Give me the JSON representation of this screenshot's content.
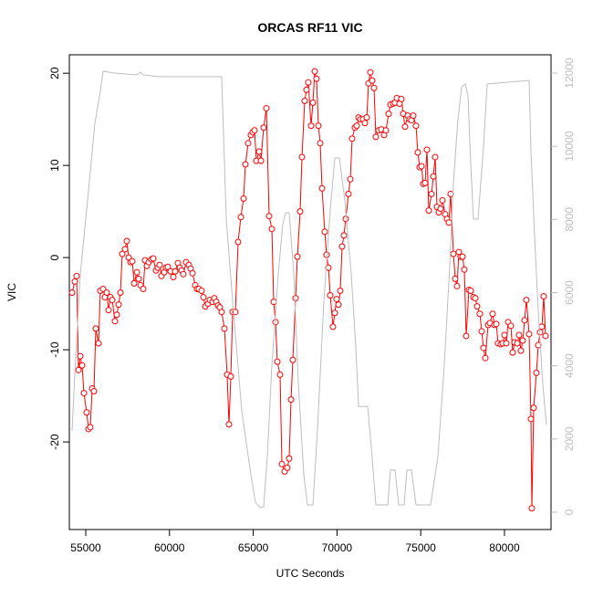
{
  "chart_data": {
    "type": "line",
    "title": "ORCAS RF11 VIC",
    "x_label": "UTC Seconds",
    "y_label": "VIC",
    "xlim": [
      54020,
      82780
    ],
    "ylim": [
      -29.5,
      22
    ],
    "y2lim": [
      -474,
      12499
    ],
    "xticks": [
      55000,
      60000,
      65000,
      70000,
      75000,
      80000
    ],
    "yticks": [
      -20,
      -10,
      0,
      10,
      20
    ],
    "y2ticks": [
      0,
      2000,
      4000,
      6000,
      8000,
      10000,
      12000
    ],
    "series": [
      {
        "color": "#ff0000",
        "markers": true,
        "x": [
          54183,
          54346,
          54455,
          54564,
          54673,
          54782,
          54891,
          55054,
          55163,
          55272,
          55381,
          55490,
          55599,
          55762,
          55871,
          56035,
          56144,
          56253,
          56362,
          56471,
          56580,
          56744,
          56853,
          56962,
          57070,
          57179,
          57343,
          57452,
          57561,
          57670,
          57778,
          57887,
          58050,
          58159,
          58268,
          58432,
          58541,
          58650,
          58758,
          58922,
          59031,
          59194,
          59303,
          59412,
          59521,
          59684,
          59793,
          59902,
          60065,
          60229,
          60338,
          60501,
          60610,
          60719,
          60828,
          60991,
          61155,
          61264,
          61373,
          61536,
          61645,
          61754,
          61917,
          62026,
          62135,
          62298,
          62407,
          62571,
          62680,
          62789,
          62898,
          63007,
          63115,
          63279,
          63442,
          63551,
          63660,
          63769,
          63932,
          64096,
          64259,
          64423,
          64532,
          64695,
          64859,
          64968,
          65076,
          65185,
          65349,
          65458,
          65621,
          65784,
          65948,
          66111,
          66220,
          66329,
          66438,
          66601,
          66710,
          66874,
          67037,
          67146,
          67255,
          67364,
          67527,
          67636,
          67800,
          67909,
          68072,
          68181,
          68290,
          68453,
          68562,
          68671,
          68780,
          68889,
          68998,
          69107,
          69270,
          69379,
          69488,
          69597,
          69760,
          69869,
          69978,
          70087,
          70196,
          70305,
          70414,
          70523,
          70686,
          70795,
          70904,
          71068,
          71177,
          71285,
          71394,
          71558,
          71667,
          71776,
          71885,
          71993,
          72102,
          72211,
          72320,
          72484,
          72647,
          72811,
          72920,
          73083,
          73192,
          73355,
          73464,
          73573,
          73736,
          73845,
          73954,
          74063,
          74227,
          74336,
          74444,
          74553,
          74717,
          74826,
          74935,
          75044,
          75153,
          75261,
          75370,
          75479,
          75643,
          75752,
          75861,
          75969,
          76078,
          76187,
          76296,
          76460,
          76569,
          76678,
          76786,
          76950,
          77059,
          77168,
          77277,
          77386,
          77495,
          77603,
          77712,
          77876,
          77985,
          78148,
          78257,
          78366,
          78529,
          78638,
          78747,
          78856,
          79020,
          79129,
          79292,
          79401,
          79510,
          79619,
          79782,
          79891,
          80000,
          80109,
          80218,
          80381,
          80490,
          80599,
          80763,
          80871,
          80980,
          81089,
          81198,
          81307,
          81471,
          81580,
          81634,
          81743,
          81907,
          82015,
          82124,
          82233,
          82342,
          82451
        ],
        "values": [
          -3.8,
          -2.6,
          -2.0,
          -12.2,
          -10.7,
          -11.7,
          -14.7,
          -16.8,
          -18.6,
          -18.4,
          -14.2,
          -14.5,
          -7.7,
          -9.3,
          -3.6,
          -3.4,
          -4.3,
          -3.8,
          -5.7,
          -4.3,
          -4.6,
          -6.9,
          -6.2,
          -5.1,
          -3.8,
          0.4,
          0.9,
          1.8,
          0.0,
          -0.5,
          -0.4,
          -2.8,
          -1.6,
          -2.3,
          -3.0,
          -3.4,
          -0.3,
          -0.9,
          -0.5,
          -0.2,
          -0.1,
          -1.4,
          -1.1,
          -0.8,
          -2.0,
          -1.6,
          -1.1,
          -1.0,
          -1.5,
          -2.1,
          -1.5,
          -0.6,
          -1.1,
          -1.4,
          -1.8,
          -0.5,
          -0.8,
          -1.2,
          -1.7,
          -3.0,
          -3.4,
          -3.4,
          -3.6,
          -4.3,
          -5.3,
          -5.0,
          -4.6,
          -4.8,
          -4.4,
          -4.8,
          -5.2,
          -5.4,
          -5.9,
          -7.7,
          -12.7,
          -18.1,
          -12.9,
          -5.9,
          -5.9,
          1.7,
          4.4,
          6.4,
          10.1,
          12.4,
          13.3,
          13.6,
          13.8,
          10.5,
          11.5,
          10.5,
          14.1,
          16.2,
          4.5,
          3.1,
          -4.8,
          -7.0,
          -11.3,
          -12.7,
          -22.4,
          -23.2,
          -22.8,
          -21.8,
          -15.4,
          -11.1,
          -4.4,
          0.1,
          5.0,
          10.9,
          17.0,
          18.2,
          19.0,
          14.3,
          16.8,
          20.2,
          19.4,
          14.3,
          12.4,
          7.5,
          2.8,
          0.3,
          -1.1,
          -4.1,
          -7.5,
          -6.0,
          -4.5,
          -5.1,
          -3.6,
          1.2,
          2.4,
          4.2,
          6.9,
          8.5,
          12.9,
          14.1,
          14.3,
          15.2,
          15.0,
          15.0,
          14.6,
          15.2,
          18.9,
          20.1,
          19.2,
          18.4,
          13.1,
          13.8,
          13.9,
          13.3,
          13.8,
          15.6,
          16.6,
          16.7,
          16.8,
          17.3,
          16.7,
          17.2,
          15.6,
          14.2,
          15.4,
          15.0,
          14.9,
          15.4,
          14.3,
          11.4,
          9.8,
          9.9,
          8.0,
          8.1,
          11.7,
          5.1,
          6.9,
          8.8,
          10.9,
          5.5,
          4.9,
          5.3,
          6.2,
          4.7,
          4.2,
          3.8,
          6.9,
          0.4,
          -2.3,
          -3.1,
          0.6,
          0.1,
          0.1,
          -1.3,
          -8.5,
          -3.5,
          -3.6,
          -4.3,
          -4.4,
          -5.3,
          -6.1,
          -8.0,
          -9.8,
          -10.9,
          -7.3,
          -7.1,
          -6.1,
          -7.3,
          -7.2,
          -9.3,
          -9.4,
          -9.3,
          -8.4,
          -9.3,
          -7.0,
          -7.4,
          -10.3,
          -9.2,
          -9.3,
          -8.4,
          -10.1,
          -9.0,
          -6.8,
          -4.6,
          -8.3,
          -17.5,
          -27.2,
          -16.3,
          -12.5,
          -9.5,
          -8.1,
          -7.5,
          -4.2,
          -8.5
        ]
      },
      {
        "color": "#bebebe",
        "axis": "y2",
        "x": [
          54183,
          54346,
          54673,
          55054,
          55544,
          55871,
          56035,
          56689,
          58050,
          58268,
          58432,
          59412,
          63115,
          63388,
          63769,
          64314,
          64859,
          65131,
          65403,
          65621,
          65839,
          66111,
          66492,
          66765,
          66928,
          67146,
          67418,
          67691,
          68018,
          68236,
          68562,
          68834,
          69216,
          69597,
          69869,
          70141,
          70468,
          70849,
          71122,
          71285,
          71830,
          72047,
          72320,
          73029,
          73192,
          73464,
          73682,
          74009,
          74172,
          74444,
          74717,
          75588,
          76024,
          76405,
          76732,
          76950,
          77223,
          77441,
          77658,
          77822,
          77985,
          78148,
          78420,
          78747,
          78965,
          81471,
          81580,
          81798,
          82015,
          82287,
          82505
        ],
        "values": [
          2220,
          3770,
          6510,
          8260,
          10630,
          11500,
          12050,
          12000,
          11950,
          12020,
          11950,
          11900,
          11900,
          8010,
          5760,
          2770,
          1020,
          270,
          125,
          150,
          1520,
          4020,
          6510,
          7880,
          8180,
          8180,
          6510,
          3520,
          1020,
          200,
          200,
          2270,
          5760,
          8260,
          9680,
          9680,
          8510,
          6510,
          4510,
          2890,
          2890,
          1770,
          200,
          200,
          1150,
          1150,
          200,
          200,
          1150,
          1150,
          200,
          200,
          1520,
          4020,
          6760,
          9000,
          10750,
          11620,
          11700,
          11370,
          9500,
          8010,
          8010,
          10000,
          11700,
          11800,
          9880,
          7510,
          5510,
          3520,
          2390
        ]
      }
    ]
  }
}
